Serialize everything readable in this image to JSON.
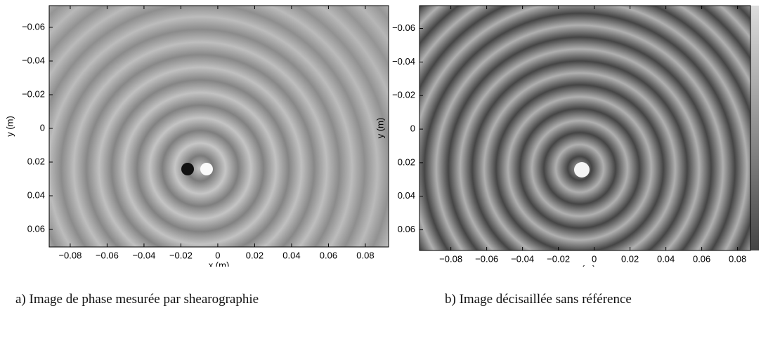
{
  "chart_data": [
    {
      "type": "image",
      "caption_label": "a)",
      "caption": "Image de phase mesurée par shearographie",
      "xlabel": "x (m)",
      "ylabel": "y (m)",
      "xlim": [
        -0.0914,
        0.0926
      ],
      "ylim": [
        -0.0729,
        0.0704
      ],
      "y_reversed": true,
      "xticks": [
        {
          "value": -0.08,
          "label": "−0.08"
        },
        {
          "value": -0.06,
          "label": "−0.06"
        },
        {
          "value": -0.04,
          "label": "−0.04"
        },
        {
          "value": -0.02,
          "label": "−0.02"
        },
        0,
        0.02,
        0.04,
        0.06,
        0.08
      ],
      "yticks": [
        {
          "value": -0.06,
          "label": "−0.06"
        },
        {
          "value": -0.04,
          "label": "−0.04"
        },
        {
          "value": -0.02,
          "label": "−0.02"
        },
        0,
        0.02,
        0.04,
        0.06
      ]
    },
    {
      "type": "image",
      "caption_label": "b)",
      "caption": "Image décisaillée sans référence",
      "xlabel": "x (m)",
      "ylabel": "y (m)",
      "xlim": [
        -0.0975,
        0.0872
      ],
      "ylim": [
        -0.0736,
        0.0723
      ],
      "y_reversed": true,
      "xticks": [
        {
          "value": -0.08,
          "label": "−0.08"
        },
        {
          "value": -0.06,
          "label": "−0.06"
        },
        {
          "value": -0.04,
          "label": "−0.04"
        },
        {
          "value": -0.02,
          "label": "−0.02"
        },
        0,
        0.02,
        0.04,
        0.06,
        0.08
      ],
      "yticks": [
        {
          "value": -0.06,
          "label": "−0.06"
        },
        {
          "value": -0.04,
          "label": "−0.04"
        },
        {
          "value": -0.02,
          "label": "−0.02"
        },
        0,
        0.02,
        0.04,
        0.06
      ]
    }
  ]
}
